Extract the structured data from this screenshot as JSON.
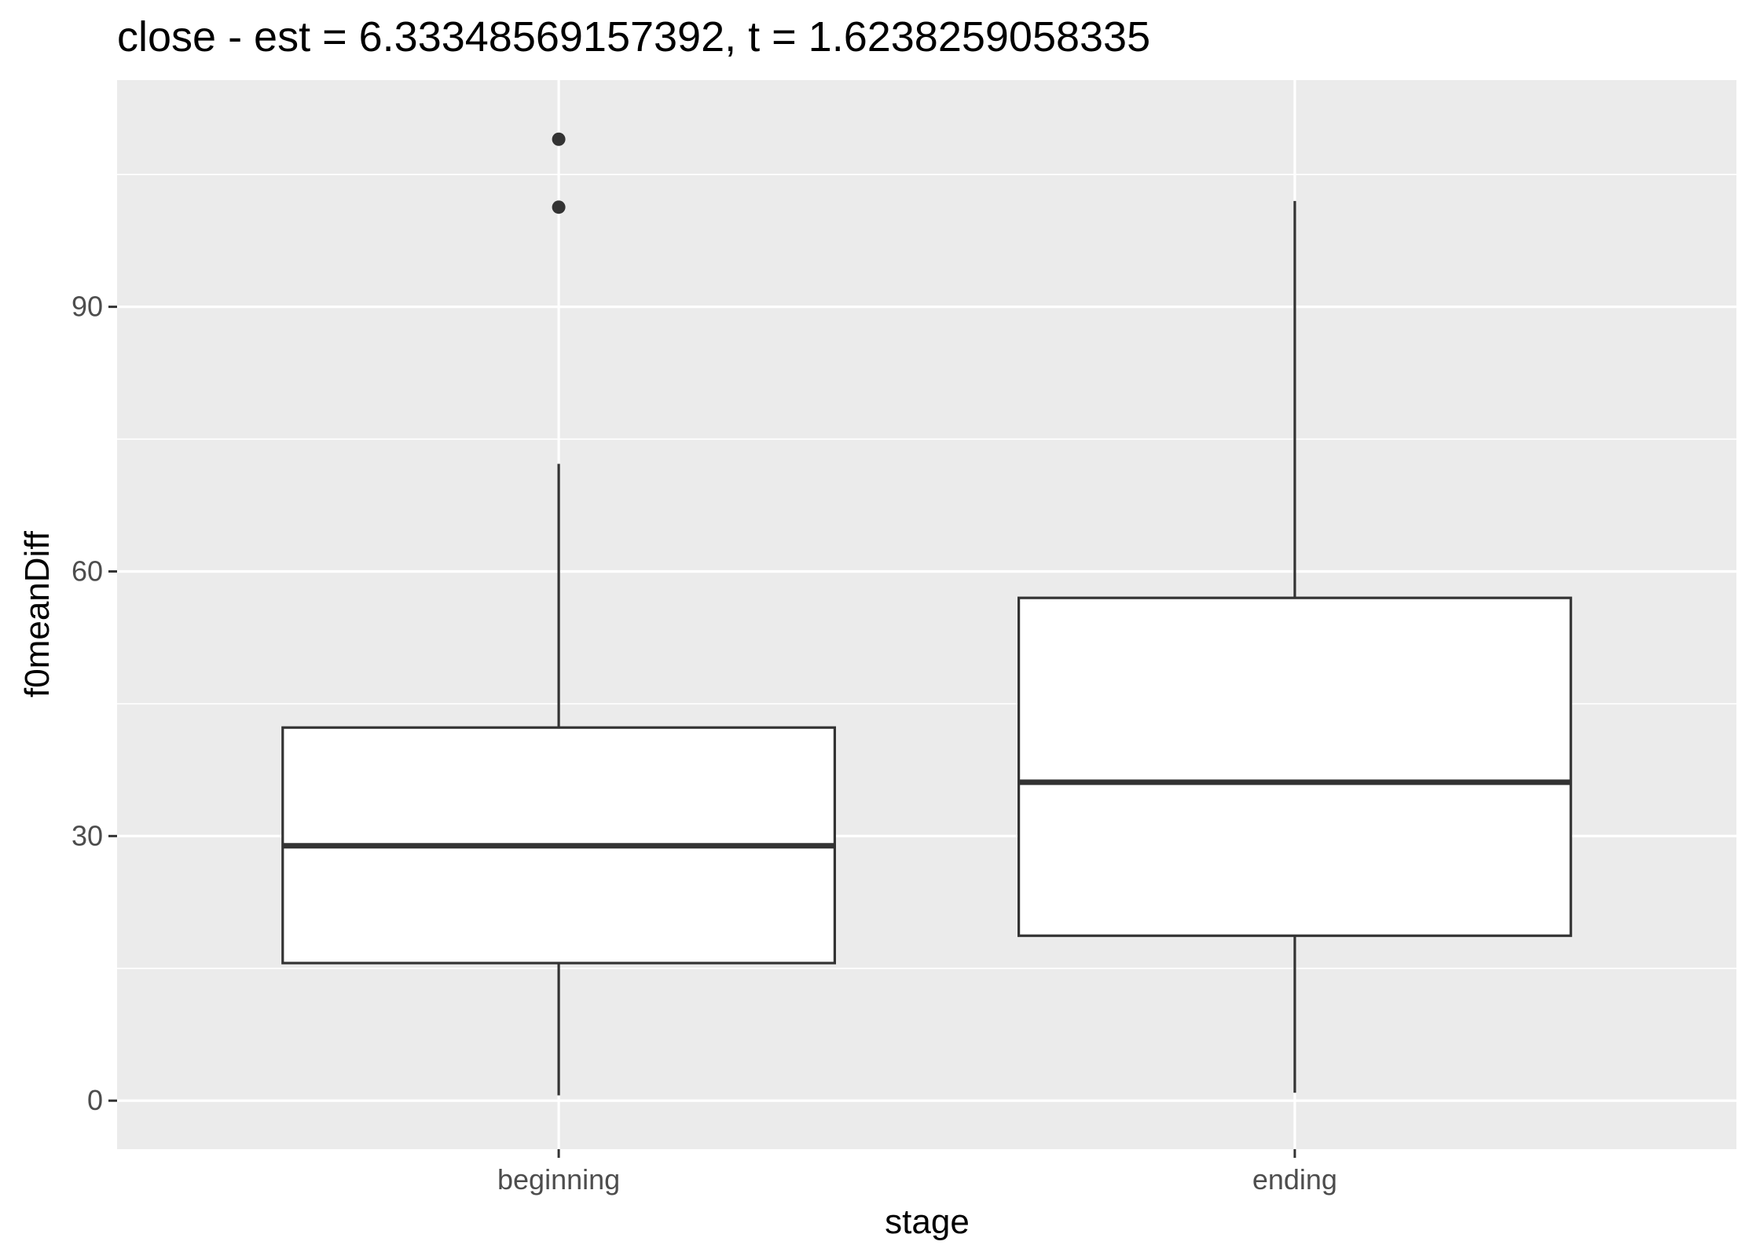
{
  "chart_data": {
    "type": "box",
    "title": "close - est = 6.33348569157392, t = 1.6238259058335",
    "xlabel": "stage",
    "ylabel": "f0meanDiff",
    "categories": [
      "beginning",
      "ending"
    ],
    "ylim": [
      -5.5,
      115.7
    ],
    "yticks": [
      0,
      30,
      60,
      90
    ],
    "grid": true,
    "boxes": [
      {
        "name": "beginning",
        "whisker_low": 0.6,
        "q1": 15.6,
        "median": 28.9,
        "q3": 42.3,
        "whisker_high": 72.2,
        "outliers": [
          101.3,
          109.0
        ]
      },
      {
        "name": "ending",
        "whisker_low": 0.9,
        "q1": 18.7,
        "median": 36.1,
        "q3": 57.0,
        "whisker_high": 102.0,
        "outliers": []
      }
    ],
    "colors": {
      "panel": "#ebebeb",
      "grid": "#ffffff",
      "box_fill": "#ffffff",
      "box_line": "#333333",
      "tick_text": "#4d4d4d",
      "tick_mark": "#333333"
    }
  }
}
